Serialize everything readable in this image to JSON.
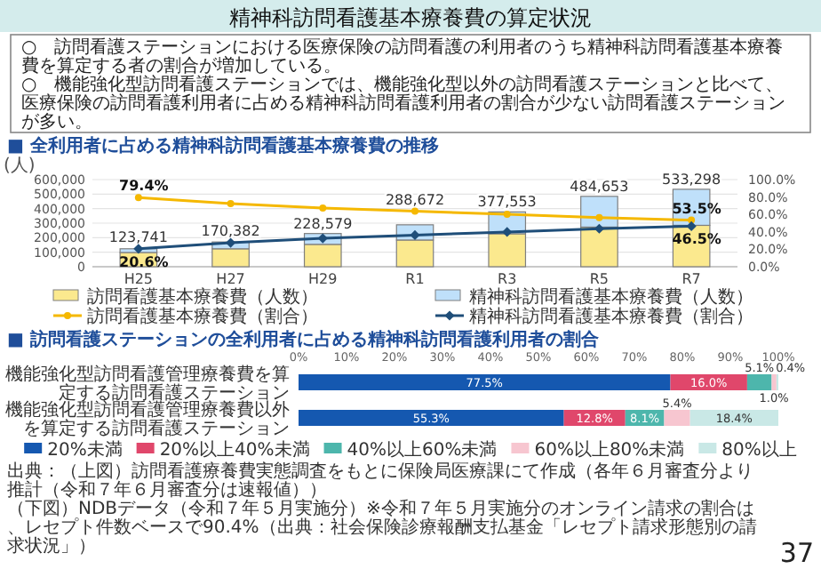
{
  "chart_data": [
    {
      "type": "other",
      "title": "精神科訪問看護基本療養費の算定状況",
      "annotations": [
        "○　訪問看護ステーションにおける医療保険の訪問看護の利用者のうち精神科訪問看護基本療養費を算定する者の割合が増加している。",
        "○　機能強化型訪問看護ステーションでは、機能強化型以外の訪問看護ステーションと比べて、医療保険の訪問看護利用者に占める精神科訪問看護利用者の割合が少ない訪問看護ステーションが多い。"
      ]
    },
    {
      "type": "bar",
      "stacked": true,
      "title": "■ 全利用者に占める精神科訪問看護基本療養費の推移",
      "ylabel": "(人)",
      "grid": "y",
      "legend": "bottom",
      "categories": [
        "H25",
        "H27",
        "H29",
        "R1",
        "R3",
        "R5",
        "R7"
      ],
      "ylim": [
        0,
        600000
      ],
      "yticks": [
        {
          "value": 0,
          "label": "0"
        },
        {
          "value": 100000,
          "label": "100,000"
        },
        {
          "value": 200000,
          "label": "200,000"
        },
        {
          "value": 300000,
          "label": "300,000"
        },
        {
          "value": 400000,
          "label": "400,000"
        },
        {
          "value": 500000,
          "label": "500,000"
        },
        {
          "value": 600000,
          "label": "600,000"
        }
      ],
      "y2lim": [
        0,
        100
      ],
      "y2ticks": [
        {
          "value": 0,
          "label": "0.0%"
        },
        {
          "value": 20,
          "label": "20.0%"
        },
        {
          "value": 40,
          "label": "40.0%"
        },
        {
          "value": 60,
          "label": "60.0%"
        },
        {
          "value": 80,
          "label": "80.0%"
        },
        {
          "value": 100,
          "label": "100.0%"
        }
      ],
      "totals": [
        "123,741",
        "170,382",
        "228,579",
        "288,672",
        "377,553",
        "484,653",
        "533,298"
      ],
      "series": [
        {
          "name": "訪問看護基本療養費（人数）",
          "color": "#fbe98e",
          "values": [
            98000,
            123500,
            154000,
            184000,
            227000,
            273000,
            285000
          ]
        },
        {
          "name": "精神科訪問看護基本療養費（人数）",
          "color": "#bfe0fa",
          "values": [
            25741,
            46882,
            74579,
            104672,
            150553,
            211653,
            248298
          ]
        },
        {
          "name": "訪問看護基本療養費（割合）",
          "type": "line",
          "axis": "y2",
          "marker": "circle",
          "color": "#f5b800",
          "values": [
            79.4,
            72.5,
            67.4,
            63.7,
            60.1,
            56.4,
            53.5
          ],
          "value_labels": [
            "79.4%",
            null,
            null,
            null,
            null,
            null,
            "53.5%"
          ]
        },
        {
          "name": "精神科訪問看護基本療養費（割合）",
          "type": "line",
          "axis": "y2",
          "marker": "diamond",
          "color": "#1f4e79",
          "values": [
            20.6,
            27.5,
            32.6,
            36.3,
            39.9,
            43.6,
            46.5
          ],
          "value_labels": [
            "20.6%",
            null,
            null,
            null,
            null,
            null,
            "46.5%"
          ]
        }
      ]
    },
    {
      "type": "bar",
      "orientation": "horizontal",
      "stacked": true,
      "title": "■ 訪問看護ステーションの全利用者に占める精神科訪問看護利用者の割合",
      "legend": "bottom",
      "categories": [
        "機能強化型訪問看護管理療養費を算定する訪問看護ステーション",
        "機能強化型訪問看護管理療養費以外を算定する訪問看護ステーション"
      ],
      "xlim": [
        0,
        100
      ],
      "xticks": [
        {
          "value": 0,
          "label": "0%"
        },
        {
          "value": 10,
          "label": "10%"
        },
        {
          "value": 20,
          "label": "20%"
        },
        {
          "value": 30,
          "label": "30%"
        },
        {
          "value": 40,
          "label": "40%"
        },
        {
          "value": 50,
          "label": "50%"
        },
        {
          "value": 60,
          "label": "60%"
        },
        {
          "value": 70,
          "label": "70%"
        },
        {
          "value": 80,
          "label": "80%"
        },
        {
          "value": 90,
          "label": "90%"
        },
        {
          "value": 100,
          "label": "100%"
        }
      ],
      "series": [
        {
          "name": "20%未満",
          "color": "#1558b0",
          "values": [
            77.5,
            55.3
          ],
          "value_labels": [
            "77.5%",
            "55.3%"
          ]
        },
        {
          "name": "20%以上40%未満",
          "color": "#e0476b",
          "values": [
            16.0,
            12.8
          ],
          "value_labels": [
            "16.0%",
            "12.8%"
          ]
        },
        {
          "name": "40%以上60%未満",
          "color": "#4db6ac",
          "values": [
            5.1,
            8.1
          ],
          "value_labels": [
            "5.1%",
            "8.1%"
          ]
        },
        {
          "name": "60%以上80%未満",
          "color": "#f7c6d0",
          "values": [
            1.0,
            5.4
          ],
          "value_labels": [
            "1.0%",
            "5.4%"
          ]
        },
        {
          "name": "80%以上",
          "color": "#c9e8e6",
          "values": [
            0.4,
            18.4
          ],
          "value_labels": [
            "0.4%",
            "18.4%"
          ]
        }
      ],
      "annotations": [
        "出典：（上図）訪問看護療養費実態調査をもとに保険局医療課にて作成（各年６月審査分より推計（令和７年６月審査分は速報値））",
        "（下図）NDBデータ（令和７年５月実施分）※令和７年５月実施分のオンライン請求の割合は、レセプト件数ベースで90.4%（出典：社会保険診療報酬支払基金「レセプト請求形態別の請求状況」）",
        "37"
      ]
    }
  ]
}
